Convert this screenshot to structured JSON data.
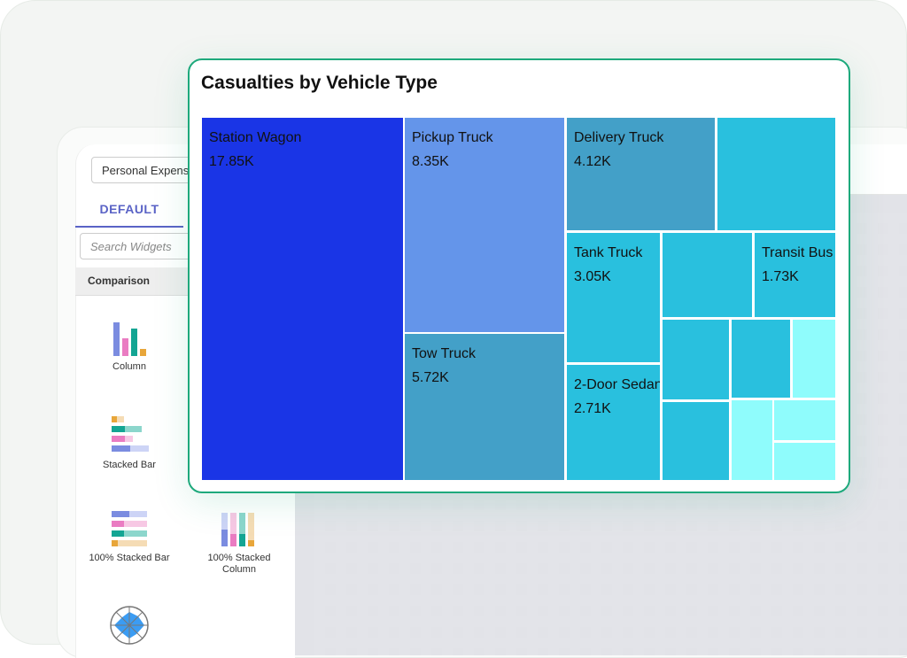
{
  "sidebar": {
    "dataset_select": "Personal Expenses",
    "tab": "DEFAULT",
    "search_placeholder": "Search Widgets",
    "category": "Comparison",
    "widgets": [
      {
        "label": "Column",
        "icon": "column-chart-icon"
      },
      {
        "label": "Stacked Bar",
        "icon": "stacked-bar-chart-icon"
      },
      {
        "label": "100% Stacked Bar",
        "icon": "100-stacked-bar-chart-icon"
      },
      {
        "label": "100% Stacked Column",
        "icon": "100-stacked-column-chart-icon"
      },
      {
        "label": "",
        "icon": "radar-chart-icon"
      }
    ]
  },
  "card": {
    "title": "Casualties by Vehicle Type",
    "border_color": "#1ea97c"
  },
  "chart_data": {
    "type": "treemap",
    "title": "Casualties by Vehicle Type",
    "items": [
      {
        "label": "Station Wagon",
        "value_label": "17.85K",
        "value": 17850,
        "color": "#1a35e6"
      },
      {
        "label": "Pickup Truck",
        "value_label": "8.35K",
        "value": 8350,
        "color": "#6495ea"
      },
      {
        "label": "Tow Truck",
        "value_label": "5.72K",
        "value": 5720,
        "color": "#43a0c8"
      },
      {
        "label": "Delivery Truck",
        "value_label": "4.12K",
        "value": 4120,
        "color": "#43a0c8"
      },
      {
        "label": "Tank Truck",
        "value_label": "3.05K",
        "value": 3050,
        "color": "#29c0de"
      },
      {
        "label": "2-Door Sedan",
        "value_label": "2.71K",
        "value": 2710,
        "color": "#29c0de"
      },
      {
        "label": "Transit Bus",
        "value_label": "1.73K",
        "value": 1730,
        "color": "#29c0de"
      }
    ],
    "colors": {
      "dark_blue": "#1a35e6",
      "light_blue": "#6495ea",
      "steel": "#43a0c8",
      "cyan": "#29c0de",
      "pale_cyan": "#8ffcfc"
    }
  }
}
